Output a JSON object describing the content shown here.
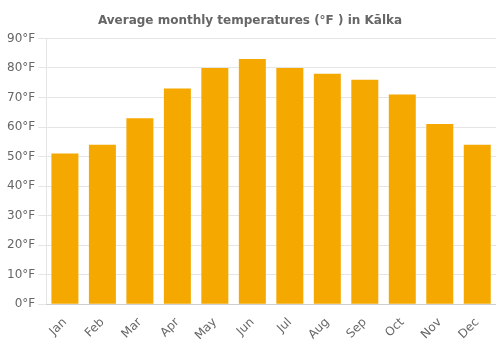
{
  "chart_data": {
    "type": "bar",
    "title": "Average monthly temperatures (°F ) in Kālka",
    "categories": [
      "Jan",
      "Feb",
      "Mar",
      "Apr",
      "May",
      "Jun",
      "Jul",
      "Aug",
      "Sep",
      "Oct",
      "Nov",
      "Dec"
    ],
    "values": [
      51,
      54,
      63,
      73,
      80,
      83,
      80,
      78,
      76,
      71,
      61,
      54
    ],
    "color": "#F5A800",
    "ylim": [
      0,
      90
    ],
    "yticks": [
      {
        "value": 0,
        "label": "0°F"
      },
      {
        "value": 10,
        "label": "10°F"
      },
      {
        "value": 20,
        "label": "20°F"
      },
      {
        "value": 30,
        "label": "30°F"
      },
      {
        "value": 40,
        "label": "40°F"
      },
      {
        "value": 50,
        "label": "50°F"
      },
      {
        "value": 60,
        "label": "60°F"
      },
      {
        "value": 70,
        "label": "70°F"
      },
      {
        "value": 80,
        "label": "80°F"
      },
      {
        "value": 90,
        "label": "90°F"
      }
    ],
    "grid": true
  }
}
